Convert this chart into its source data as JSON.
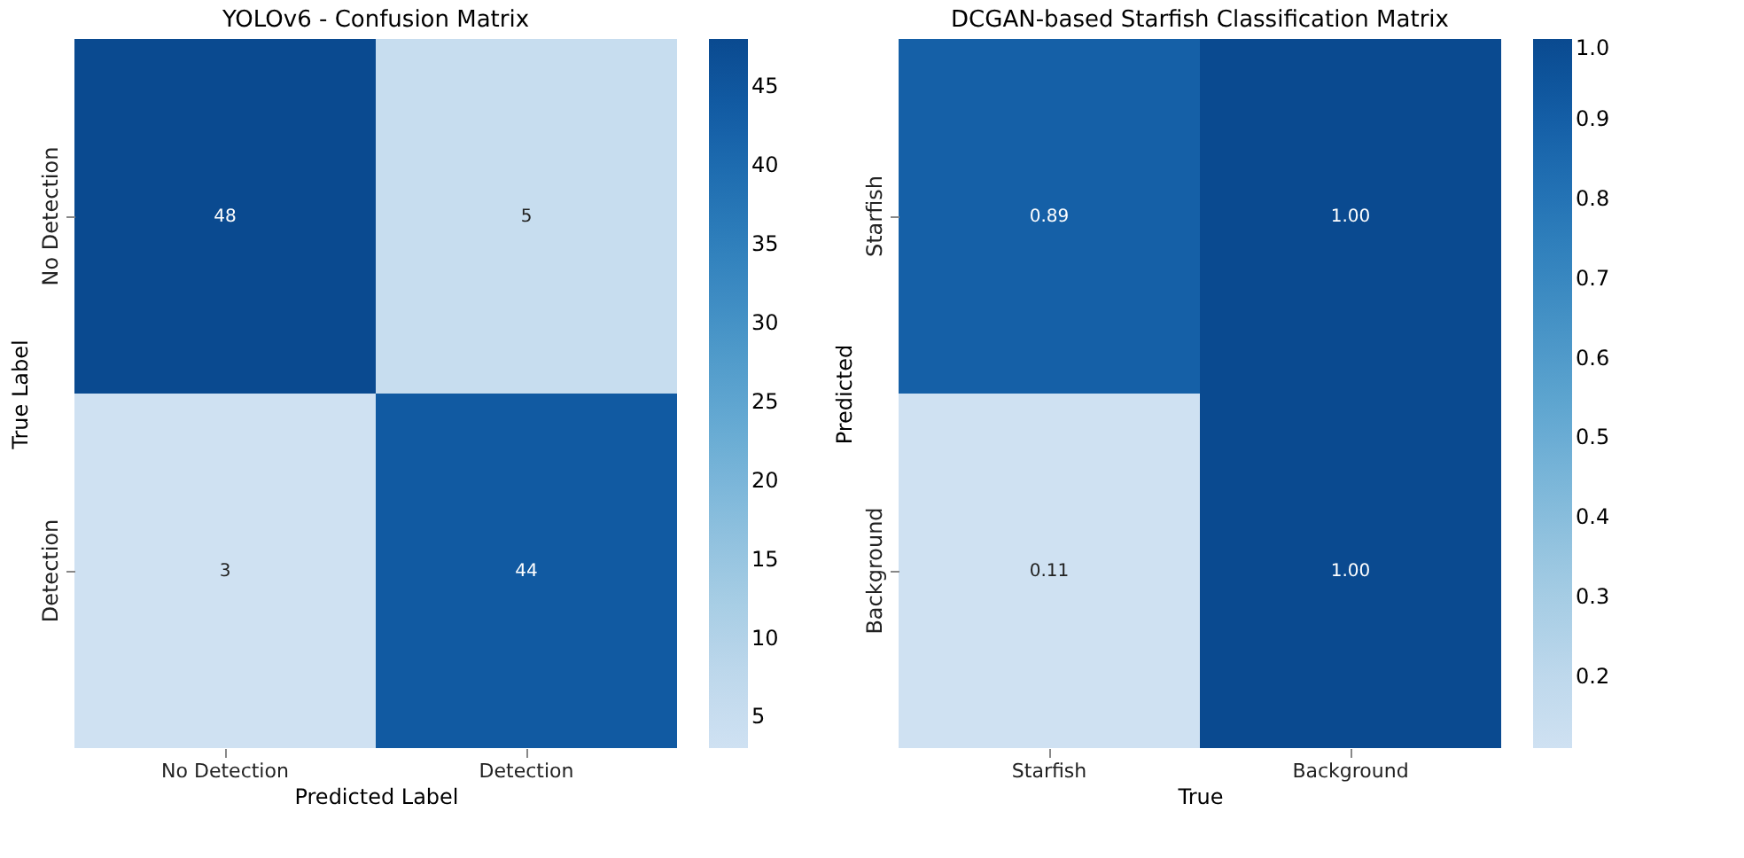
{
  "chart_data": [
    {
      "type": "heatmap",
      "title": "YOLOv6 - Confusion Matrix",
      "xlabel": "Predicted Label",
      "ylabel": "True Label",
      "categories": [
        "No Detection",
        "Detection"
      ],
      "y_categories": [
        "No Detection",
        "Detection"
      ],
      "cells": [
        [
          48,
          5
        ],
        [
          3,
          44
        ]
      ],
      "clim": [
        3,
        48
      ],
      "cticks": [
        5,
        10,
        15,
        20,
        25,
        30,
        35,
        40,
        45
      ],
      "data_labels": true
    },
    {
      "type": "heatmap",
      "title": "DCGAN-based Starfish Classification Matrix",
      "xlabel": "True",
      "ylabel": "Predicted",
      "categories": [
        "Starfish",
        "Background"
      ],
      "y_categories": [
        "Starfish",
        "Background"
      ],
      "cells": [
        [
          0.89,
          1.0
        ],
        [
          0.11,
          1.0
        ]
      ],
      "cell_labels": [
        [
          "0.89",
          "1.00"
        ],
        [
          "0.11",
          "1.00"
        ]
      ],
      "clim": [
        0.11,
        1.0
      ],
      "cticks": [
        0.2,
        0.3,
        0.4,
        0.5,
        0.6,
        0.7,
        0.8,
        0.9,
        {
          "value": 1.0,
          "label": "1.0"
        }
      ],
      "data_labels": true
    }
  ]
}
